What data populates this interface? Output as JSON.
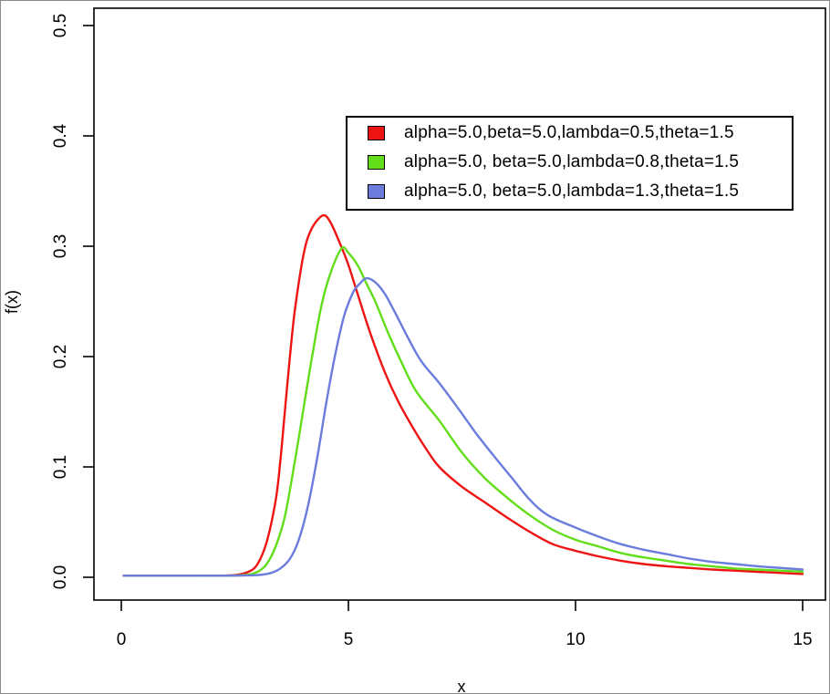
{
  "figure": {
    "background": "#ffffff",
    "frame_color": "#8a8a8a"
  },
  "chart_data": {
    "type": "line",
    "title": "",
    "xlabel": "x",
    "ylabel": "f(x)",
    "xlim": [
      0,
      15
    ],
    "ylim": [
      0.0,
      0.5
    ],
    "x_ticks": [
      "0",
      "5",
      "10",
      "15"
    ],
    "y_ticks": [
      "0.0",
      "0.1",
      "0.2",
      "0.3",
      "0.4",
      "0.5"
    ],
    "grid": false,
    "legend_position": "top-right-inside",
    "axis_color": "#000000",
    "series": [
      {
        "name": "lambda-0.5",
        "label": "alpha=5.0,beta=5.0,lambda=0.5,theta=1.5",
        "color": "#ee1414",
        "peak": {
          "x": 4.45,
          "f": 0.328
        },
        "points": [
          [
            0.05,
            0.0015
          ],
          [
            0.7,
            0.0015
          ],
          [
            1.4,
            0.0015
          ],
          [
            2.0,
            0.0015
          ],
          [
            2.5,
            0.002
          ],
          [
            2.8,
            0.005
          ],
          [
            3.0,
            0.012
          ],
          [
            3.2,
            0.032
          ],
          [
            3.4,
            0.07
          ],
          [
            3.5,
            0.105
          ],
          [
            3.6,
            0.15
          ],
          [
            3.7,
            0.195
          ],
          [
            3.8,
            0.235
          ],
          [
            3.9,
            0.265
          ],
          [
            4.0,
            0.29
          ],
          [
            4.1,
            0.307
          ],
          [
            4.25,
            0.32
          ],
          [
            4.45,
            0.328
          ],
          [
            4.6,
            0.322
          ],
          [
            4.8,
            0.304
          ],
          [
            5.0,
            0.283
          ],
          [
            5.2,
            0.257
          ],
          [
            5.5,
            0.219
          ],
          [
            5.8,
            0.186
          ],
          [
            6.1,
            0.159
          ],
          [
            6.4,
            0.137
          ],
          [
            6.7,
            0.117
          ],
          [
            7.0,
            0.1
          ],
          [
            7.5,
            0.082
          ],
          [
            8.0,
            0.068
          ],
          [
            8.5,
            0.054
          ],
          [
            9.0,
            0.041
          ],
          [
            9.5,
            0.03
          ],
          [
            10.0,
            0.024
          ],
          [
            10.5,
            0.019
          ],
          [
            11.0,
            0.015
          ],
          [
            11.5,
            0.012
          ],
          [
            12.0,
            0.01
          ],
          [
            12.5,
            0.0085
          ],
          [
            13.0,
            0.007
          ],
          [
            13.5,
            0.006
          ],
          [
            14.0,
            0.005
          ],
          [
            14.5,
            0.004
          ],
          [
            15.0,
            0.003
          ]
        ]
      },
      {
        "name": "lambda-0.8",
        "label": "alpha=5.0, beta=5.0,lambda=0.8,theta=1.5",
        "color": "#62dd1a",
        "peak": {
          "x": 4.85,
          "f": 0.298
        },
        "points": [
          [
            0.05,
            0.0015
          ],
          [
            0.7,
            0.0015
          ],
          [
            1.4,
            0.0015
          ],
          [
            2.0,
            0.0015
          ],
          [
            2.7,
            0.002
          ],
          [
            3.0,
            0.005
          ],
          [
            3.2,
            0.012
          ],
          [
            3.4,
            0.028
          ],
          [
            3.6,
            0.055
          ],
          [
            3.8,
            0.1
          ],
          [
            4.0,
            0.15
          ],
          [
            4.2,
            0.2
          ],
          [
            4.4,
            0.245
          ],
          [
            4.6,
            0.275
          ],
          [
            4.85,
            0.298
          ],
          [
            5.0,
            0.294
          ],
          [
            5.2,
            0.283
          ],
          [
            5.4,
            0.266
          ],
          [
            5.6,
            0.249
          ],
          [
            5.9,
            0.219
          ],
          [
            6.2,
            0.192
          ],
          [
            6.5,
            0.168
          ],
          [
            7.0,
            0.142
          ],
          [
            7.5,
            0.113
          ],
          [
            8.0,
            0.09
          ],
          [
            8.5,
            0.072
          ],
          [
            9.0,
            0.056
          ],
          [
            9.5,
            0.043
          ],
          [
            10.0,
            0.034
          ],
          [
            10.5,
            0.028
          ],
          [
            11.0,
            0.022
          ],
          [
            11.5,
            0.018
          ],
          [
            12.0,
            0.015
          ],
          [
            12.5,
            0.012
          ],
          [
            13.0,
            0.01
          ],
          [
            13.5,
            0.008
          ],
          [
            14.0,
            0.007
          ],
          [
            14.5,
            0.006
          ],
          [
            15.0,
            0.005
          ]
        ]
      },
      {
        "name": "lambda-1.3",
        "label": "alpha=5.0, beta=5.0,lambda=1.3,theta=1.5",
        "color": "#6b7cdc",
        "peak": {
          "x": 5.4,
          "f": 0.271
        },
        "points": [
          [
            0.05,
            0.0015
          ],
          [
            0.8,
            0.0015
          ],
          [
            1.6,
            0.0015
          ],
          [
            2.4,
            0.0015
          ],
          [
            3.0,
            0.002
          ],
          [
            3.3,
            0.004
          ],
          [
            3.5,
            0.008
          ],
          [
            3.7,
            0.016
          ],
          [
            3.9,
            0.033
          ],
          [
            4.1,
            0.063
          ],
          [
            4.3,
            0.105
          ],
          [
            4.5,
            0.155
          ],
          [
            4.7,
            0.2
          ],
          [
            4.9,
            0.236
          ],
          [
            5.1,
            0.258
          ],
          [
            5.25,
            0.266
          ],
          [
            5.4,
            0.271
          ],
          [
            5.6,
            0.267
          ],
          [
            5.8,
            0.257
          ],
          [
            6.0,
            0.242
          ],
          [
            6.3,
            0.218
          ],
          [
            6.6,
            0.196
          ],
          [
            7.0,
            0.176
          ],
          [
            7.4,
            0.154
          ],
          [
            7.8,
            0.131
          ],
          [
            8.2,
            0.11
          ],
          [
            8.6,
            0.09
          ],
          [
            9.0,
            0.07
          ],
          [
            9.4,
            0.056
          ],
          [
            10.0,
            0.045
          ],
          [
            10.5,
            0.037
          ],
          [
            11.0,
            0.03
          ],
          [
            11.5,
            0.025
          ],
          [
            12.0,
            0.021
          ],
          [
            12.5,
            0.017
          ],
          [
            13.0,
            0.014
          ],
          [
            13.5,
            0.012
          ],
          [
            14.0,
            0.01
          ],
          [
            14.5,
            0.0085
          ],
          [
            15.0,
            0.007
          ]
        ]
      }
    ]
  }
}
